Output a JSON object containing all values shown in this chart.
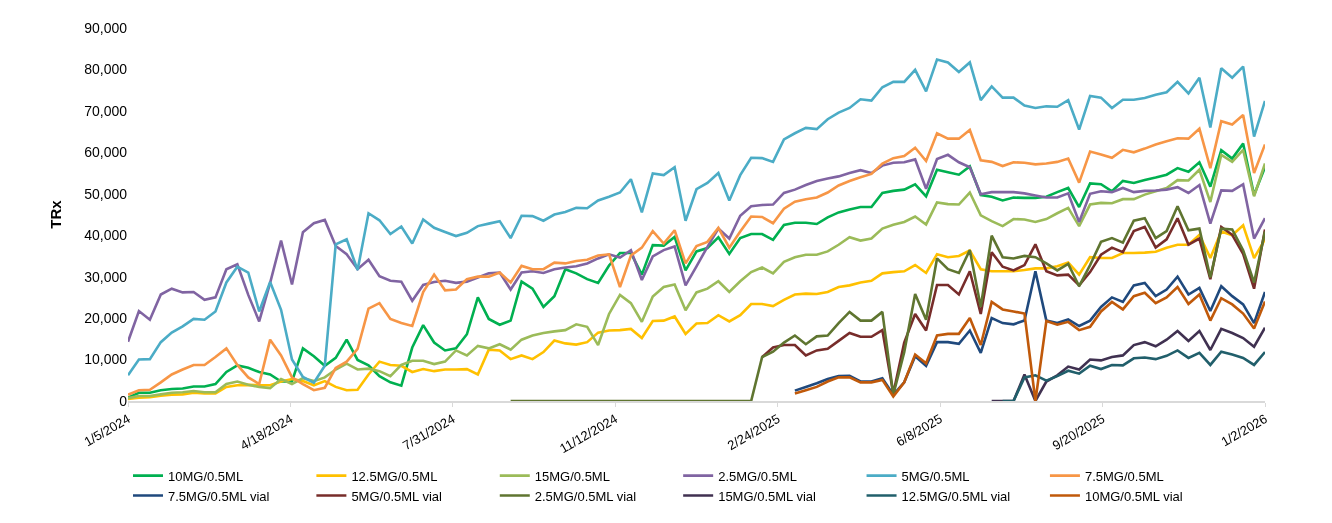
{
  "chart_data": {
    "type": "line",
    "ylabel": "TRx",
    "legend": "bottom",
    "grid": false,
    "marker": "none",
    "line_style": "solid",
    "x": [
      "2024-01-05",
      "2024-01-12",
      "2024-01-19",
      "2024-01-26",
      "2024-02-02",
      "2024-02-09",
      "2024-02-16",
      "2024-02-23",
      "2024-03-01",
      "2024-03-08",
      "2024-03-15",
      "2024-03-22",
      "2024-03-29",
      "2024-04-05",
      "2024-04-12",
      "2024-04-19",
      "2024-04-26",
      "2024-05-03",
      "2024-05-10",
      "2024-05-17",
      "2024-05-24",
      "2024-05-31",
      "2024-06-07",
      "2024-06-14",
      "2024-06-21",
      "2024-06-28",
      "2024-07-05",
      "2024-07-12",
      "2024-07-19",
      "2024-07-26",
      "2024-08-02",
      "2024-08-09",
      "2024-08-16",
      "2024-08-23",
      "2024-08-30",
      "2024-09-06",
      "2024-09-13",
      "2024-09-20",
      "2024-09-27",
      "2024-10-04",
      "2024-10-11",
      "2024-10-18",
      "2024-10-25",
      "2024-11-01",
      "2024-11-08",
      "2024-11-15",
      "2024-11-22",
      "2024-11-29",
      "2024-12-06",
      "2024-12-13",
      "2024-12-20",
      "2024-12-27",
      "2025-01-03",
      "2025-01-10",
      "2025-01-17",
      "2025-01-24",
      "2025-01-31",
      "2025-02-07",
      "2025-02-14",
      "2025-02-21",
      "2025-02-28",
      "2025-03-07",
      "2025-03-14",
      "2025-03-21",
      "2025-03-28",
      "2025-04-04",
      "2025-04-11",
      "2025-04-18",
      "2025-04-25",
      "2025-05-02",
      "2025-05-09",
      "2025-05-16",
      "2025-05-23",
      "2025-05-30",
      "2025-06-06",
      "2025-06-13",
      "2025-06-20",
      "2025-06-27",
      "2025-07-04",
      "2025-07-11",
      "2025-07-18",
      "2025-07-25",
      "2025-08-01",
      "2025-08-08",
      "2025-08-15",
      "2025-08-22",
      "2025-08-29",
      "2025-09-05",
      "2025-09-12",
      "2025-09-19",
      "2025-09-26",
      "2025-10-03",
      "2025-10-10",
      "2025-10-17",
      "2025-10-24",
      "2025-10-31",
      "2025-11-07",
      "2025-11-14",
      "2025-11-21",
      "2025-11-28",
      "2025-12-05",
      "2025-12-12",
      "2025-12-19",
      "2025-12-26",
      "2026-01-02"
    ],
    "xlim": [
      "2024-01-05",
      "2026-01-02"
    ],
    "xticks": [
      {
        "value": "2024-01-05",
        "label": "1/5/2024"
      },
      {
        "value": "2024-04-18",
        "label": "4/18/2024"
      },
      {
        "value": "2024-07-31",
        "label": "7/31/2024"
      },
      {
        "value": "2024-11-12",
        "label": "11/12/2024"
      },
      {
        "value": "2025-02-24",
        "label": "2/24/2025"
      },
      {
        "value": "2025-06-08",
        "label": "6/8/2025"
      },
      {
        "value": "2025-09-20",
        "label": "9/20/2025"
      },
      {
        "value": "2026-01-02",
        "label": "1/2/2026"
      }
    ],
    "ylim": [
      0,
      90000
    ],
    "yticks": [
      0,
      {
        "value": 10000,
        "label": "10,000"
      },
      {
        "value": 20000,
        "label": "20,000"
      },
      {
        "value": 30000,
        "label": "30,000"
      },
      {
        "value": 40000,
        "label": "40,000"
      },
      {
        "value": 50000,
        "label": "50,000"
      },
      {
        "value": 60000,
        "label": "60,000"
      },
      {
        "value": 70000,
        "label": "70,000"
      },
      {
        "value": 80000,
        "label": "80,000"
      },
      {
        "value": 90000,
        "label": "90,000"
      }
    ],
    "series": [
      {
        "name": "10MG/0.5ML",
        "color": "#00b050",
        "values": [
          800,
          2000,
          2000,
          2600,
          2900,
          3000,
          3500,
          3500,
          4100,
          7000,
          8600,
          8000,
          7000,
          6400,
          4700,
          4700,
          12700,
          10800,
          8500,
          10400,
          14800,
          9900,
          8600,
          6000,
          4500,
          3700,
          12900,
          18300,
          14100,
          12200,
          12700,
          16100,
          25000,
          19800,
          18400,
          19400,
          28800,
          27100,
          22700,
          25300,
          31800,
          30800,
          29400,
          28500,
          32700,
          35700,
          35700,
          30500,
          37600,
          37500,
          39600,
          31500,
          36100,
          36900,
          39500,
          35500,
          39300,
          40300,
          40300,
          38900,
          42500,
          43000,
          43000,
          42700,
          44300,
          45500,
          46200,
          46800,
          46800,
          50200,
          50700,
          51000,
          52300,
          49400,
          55800,
          55200,
          54600,
          56600,
          49700,
          49300,
          48400,
          49100,
          49000,
          49000,
          49300,
          50400,
          51400,
          46800,
          52500,
          52300,
          50600,
          53100,
          52600,
          53300,
          53900,
          54600,
          56200,
          55300,
          57600,
          51700,
          60500,
          58500,
          62100,
          49700,
          56400
        ]
      },
      {
        "name": "12.5MG/0.5ML",
        "color": "#ffc000",
        "values": [
          500,
          800,
          900,
          1300,
          1500,
          1600,
          2000,
          1800,
          1800,
          3400,
          3800,
          3900,
          3800,
          3800,
          4700,
          5300,
          4800,
          3800,
          4800,
          3400,
          2600,
          2700,
          6400,
          9500,
          8700,
          8500,
          7000,
          7700,
          7200,
          7600,
          7600,
          7700,
          6400,
          12400,
          12200,
          10100,
          11000,
          10100,
          11800,
          14600,
          13900,
          13600,
          14200,
          16500,
          17000,
          17100,
          17400,
          15200,
          19300,
          19400,
          20400,
          16200,
          18700,
          18800,
          20700,
          19200,
          20700,
          23400,
          23400,
          22900,
          24400,
          25700,
          25900,
          25800,
          26300,
          27500,
          27900,
          28600,
          29000,
          30800,
          31100,
          31300,
          32800,
          30900,
          35400,
          34700,
          35000,
          36300,
          31800,
          31300,
          31300,
          31300,
          31600,
          32000,
          32000,
          32500,
          33400,
          30500,
          34700,
          34500,
          34500,
          35700,
          35700,
          35800,
          36000,
          37000,
          37700,
          37700,
          40100,
          34500,
          40900,
          40000,
          42400,
          34500,
          39000
        ]
      },
      {
        "name": "15MG/0.5ML",
        "color": "#9bbb59",
        "values": [
          700,
          1200,
          1200,
          1600,
          2000,
          2100,
          2400,
          2100,
          2100,
          4100,
          4700,
          3900,
          3400,
          3100,
          5300,
          4100,
          5500,
          4800,
          5700,
          7600,
          9000,
          7600,
          7800,
          7200,
          6000,
          8700,
          9700,
          9700,
          8900,
          9500,
          12200,
          11000,
          13300,
          12700,
          13700,
          12400,
          14800,
          15800,
          16400,
          16800,
          17100,
          18500,
          17900,
          13500,
          21000,
          25600,
          23600,
          19100,
          25200,
          27500,
          28100,
          21900,
          26200,
          27100,
          28900,
          26300,
          28900,
          31100,
          32200,
          30800,
          33600,
          34700,
          35300,
          35300,
          36100,
          37700,
          39500,
          38700,
          39200,
          41600,
          42500,
          43200,
          44500,
          42600,
          47900,
          47500,
          47400,
          50300,
          44800,
          43400,
          42200,
          43900,
          43800,
          43200,
          43900,
          45300,
          46600,
          42200,
          47400,
          47800,
          47700,
          48700,
          48700,
          49800,
          50600,
          51400,
          53300,
          53200,
          55800,
          48000,
          59400,
          57700,
          60600,
          49400,
          57300
        ]
      },
      {
        "name": "2.5MG/0.5ML",
        "color": "#8064a2",
        "values": [
          14300,
          21700,
          19600,
          25700,
          27100,
          26200,
          26300,
          24400,
          25000,
          31800,
          33000,
          25600,
          19200,
          28500,
          38700,
          28100,
          40700,
          42900,
          43700,
          37400,
          35400,
          31800,
          34100,
          30100,
          29000,
          28800,
          24200,
          28000,
          28700,
          29000,
          28500,
          28800,
          29800,
          30800,
          31000,
          26900,
          31000,
          31300,
          30900,
          31800,
          32200,
          32500,
          33200,
          34400,
          35400,
          34600,
          36400,
          29200,
          34900,
          36400,
          37300,
          27900,
          32500,
          37200,
          41600,
          39200,
          44700,
          47000,
          47300,
          47400,
          50200,
          51000,
          52100,
          53100,
          53700,
          54200,
          55000,
          55700,
          55000,
          56800,
          57500,
          57600,
          58300,
          51200,
          58400,
          59400,
          57600,
          56400,
          49900,
          50400,
          50400,
          50400,
          50100,
          49600,
          49100,
          49100,
          50100,
          43200,
          50000,
          50600,
          50400,
          51400,
          50400,
          50700,
          50800,
          51000,
          51600,
          50200,
          52100,
          42800,
          50800,
          50700,
          52300,
          39200,
          44100
        ]
      },
      {
        "name": "5MG/0.5ML",
        "color": "#4bacc6",
        "values": [
          6200,
          10000,
          10100,
          14200,
          16500,
          18000,
          19800,
          19600,
          21600,
          28600,
          32400,
          31000,
          21600,
          28700,
          22000,
          10000,
          5800,
          4400,
          8500,
          37800,
          39000,
          31600,
          45300,
          43600,
          40300,
          42100,
          38000,
          43800,
          41800,
          40800,
          39800,
          40600,
          42200,
          42800,
          43400,
          39300,
          44700,
          44600,
          43500,
          45000,
          45600,
          46600,
          46500,
          48400,
          49300,
          50300,
          53500,
          45500,
          54900,
          54500,
          56400,
          43500,
          51100,
          52600,
          55000,
          48400,
          54500,
          58700,
          58600,
          57700,
          63100,
          64600,
          65900,
          65600,
          68000,
          69600,
          70700,
          72800,
          72500,
          75700,
          77000,
          77000,
          79900,
          74700,
          82400,
          81700,
          79400,
          81700,
          72600,
          75900,
          73200,
          73200,
          71300,
          70700,
          71100,
          71000,
          72600,
          65500,
          73600,
          73200,
          70700,
          72700,
          72700,
          73100,
          73900,
          74500,
          77000,
          74200,
          78000,
          66000,
          80300,
          78000,
          80700,
          63800,
          72400
        ]
      },
      {
        "name": "7.5MG/0.5ML",
        "color": "#f79646",
        "values": [
          1500,
          2600,
          2700,
          4500,
          6400,
          7600,
          8700,
          8700,
          10600,
          12700,
          8700,
          5700,
          4100,
          14800,
          11000,
          5700,
          4100,
          2600,
          3200,
          8000,
          9500,
          12600,
          22300,
          23600,
          19800,
          18800,
          18100,
          26300,
          30500,
          26700,
          26900,
          29400,
          30000,
          30000,
          31000,
          28600,
          32600,
          31800,
          31800,
          33400,
          33200,
          33800,
          34100,
          35100,
          35400,
          27500,
          35100,
          37000,
          41000,
          38000,
          41200,
          33200,
          37400,
          38400,
          41800,
          37000,
          40900,
          44500,
          44400,
          42900,
          46400,
          48100,
          48700,
          49100,
          50300,
          52000,
          53100,
          54000,
          54800,
          57300,
          58600,
          59100,
          61100,
          57900,
          64600,
          63300,
          63300,
          65400,
          58100,
          57700,
          56700,
          57600,
          57500,
          57100,
          57300,
          57700,
          58500,
          52700,
          60200,
          59500,
          58700,
          60600,
          60000,
          60900,
          61900,
          62700,
          63400,
          63300,
          65700,
          56200,
          67500,
          66700,
          69000,
          55000,
          61900
        ]
      },
      {
        "name": "7.5MG/0.5ML vial",
        "color": "#1f497d",
        "values": [
          null,
          null,
          null,
          null,
          null,
          null,
          null,
          null,
          null,
          null,
          null,
          null,
          null,
          null,
          null,
          null,
          null,
          null,
          null,
          null,
          null,
          null,
          null,
          null,
          null,
          null,
          null,
          null,
          null,
          null,
          null,
          null,
          null,
          null,
          null,
          null,
          null,
          null,
          null,
          null,
          null,
          null,
          null,
          null,
          null,
          null,
          null,
          null,
          null,
          null,
          null,
          null,
          null,
          null,
          null,
          null,
          null,
          null,
          null,
          null,
          null,
          2500,
          3400,
          4300,
          5300,
          6000,
          6100,
          4700,
          4700,
          5500,
          1500,
          4500,
          10800,
          8500,
          14200,
          14200,
          13800,
          17000,
          11600,
          20000,
          18800,
          18500,
          19400,
          31300,
          19400,
          18800,
          19700,
          18100,
          19400,
          22700,
          25000,
          23900,
          27900,
          28500,
          25300,
          26900,
          30000,
          25700,
          27300,
          21700,
          27700,
          25300,
          23300,
          18800,
          26300
        ]
      },
      {
        "name": "5MG/0.5ML vial",
        "color": "#772c2a",
        "values": [
          null,
          null,
          null,
          null,
          null,
          null,
          null,
          null,
          null,
          null,
          null,
          null,
          null,
          null,
          null,
          null,
          null,
          null,
          null,
          null,
          null,
          null,
          null,
          null,
          null,
          null,
          null,
          null,
          null,
          null,
          null,
          null,
          null,
          null,
          null,
          null,
          null,
          null,
          null,
          null,
          null,
          null,
          null,
          null,
          null,
          null,
          null,
          null,
          null,
          null,
          null,
          null,
          null,
          null,
          null,
          null,
          null,
          null,
          10600,
          12900,
          13500,
          13500,
          11000,
          12200,
          12600,
          14500,
          16400,
          15500,
          15500,
          17100,
          1800,
          14100,
          21000,
          17000,
          28000,
          28000,
          25700,
          31300,
          21000,
          35900,
          32400,
          31500,
          32800,
          37800,
          31300,
          30300,
          30500,
          27900,
          31100,
          35300,
          37000,
          35900,
          41000,
          42000,
          37000,
          39000,
          44100,
          37700,
          39200,
          29400,
          42000,
          40100,
          35500,
          27100,
          41400
        ]
      },
      {
        "name": "2.5MG/0.5ML vial",
        "color": "#5f7530",
        "values": [
          null,
          null,
          null,
          null,
          null,
          null,
          null,
          null,
          null,
          null,
          null,
          null,
          null,
          null,
          null,
          null,
          null,
          null,
          null,
          null,
          null,
          null,
          null,
          null,
          null,
          null,
          null,
          null,
          null,
          null,
          null,
          null,
          null,
          null,
          null,
          0,
          0,
          0,
          0,
          0,
          0,
          0,
          0,
          0,
          0,
          0,
          0,
          0,
          0,
          0,
          0,
          0,
          0,
          0,
          0,
          0,
          0,
          0,
          10600,
          11900,
          14100,
          15800,
          13700,
          15600,
          15800,
          18800,
          21500,
          19400,
          19400,
          21500,
          1500,
          11800,
          25800,
          19600,
          34400,
          31800,
          30900,
          36400,
          22700,
          39900,
          34700,
          34400,
          35000,
          34700,
          33200,
          31500,
          33100,
          27700,
          32800,
          38400,
          39300,
          38200,
          43500,
          44100,
          39300,
          41000,
          47000,
          41200,
          41600,
          29800,
          41600,
          41400,
          36400,
          28600,
          40900
        ]
      },
      {
        "name": "15MG/0.5ML vial",
        "color": "#403151",
        "values": [
          null,
          null,
          null,
          null,
          null,
          null,
          null,
          null,
          null,
          null,
          null,
          null,
          null,
          null,
          null,
          null,
          null,
          null,
          null,
          null,
          null,
          null,
          null,
          null,
          null,
          null,
          null,
          null,
          null,
          null,
          null,
          null,
          null,
          null,
          null,
          null,
          null,
          null,
          null,
          null,
          null,
          null,
          null,
          null,
          null,
          null,
          null,
          null,
          null,
          null,
          null,
          null,
          null,
          null,
          null,
          null,
          null,
          null,
          null,
          null,
          null,
          null,
          null,
          null,
          null,
          null,
          null,
          null,
          null,
          null,
          null,
          null,
          null,
          null,
          null,
          null,
          null,
          null,
          null,
          0,
          0,
          0,
          6400,
          0,
          4700,
          6200,
          8300,
          7600,
          10000,
          9800,
          10600,
          11000,
          13500,
          14200,
          13200,
          14800,
          16900,
          14500,
          16900,
          12300,
          17400,
          16400,
          15200,
          13100,
          17700
        ]
      },
      {
        "name": "12.5MG/0.5ML vial",
        "color": "#215f6b",
        "values": [
          null,
          null,
          null,
          null,
          null,
          null,
          null,
          null,
          null,
          null,
          null,
          null,
          null,
          null,
          null,
          null,
          null,
          null,
          null,
          null,
          null,
          null,
          null,
          null,
          null,
          null,
          null,
          null,
          null,
          null,
          null,
          null,
          null,
          null,
          null,
          null,
          null,
          null,
          null,
          null,
          null,
          null,
          null,
          null,
          null,
          null,
          null,
          null,
          null,
          null,
          null,
          null,
          null,
          null,
          null,
          null,
          null,
          null,
          null,
          null,
          null,
          null,
          null,
          null,
          null,
          null,
          null,
          null,
          null,
          null,
          null,
          null,
          null,
          null,
          null,
          null,
          null,
          null,
          null,
          null,
          0,
          0,
          5700,
          6200,
          4900,
          6000,
          7300,
          6600,
          8500,
          7700,
          8700,
          8600,
          10300,
          10500,
          10100,
          10900,
          12200,
          10400,
          11600,
          8700,
          11900,
          11200,
          10400,
          8700,
          11800
        ]
      },
      {
        "name": "10MG/0.5ML vial",
        "color": "#c0590a",
        "values": [
          null,
          null,
          null,
          null,
          null,
          null,
          null,
          null,
          null,
          null,
          null,
          null,
          null,
          null,
          null,
          null,
          null,
          null,
          null,
          null,
          null,
          null,
          null,
          null,
          null,
          null,
          null,
          null,
          null,
          null,
          null,
          null,
          null,
          null,
          null,
          null,
          null,
          null,
          null,
          null,
          null,
          null,
          null,
          null,
          null,
          null,
          null,
          null,
          null,
          null,
          null,
          null,
          null,
          null,
          null,
          null,
          null,
          null,
          null,
          null,
          null,
          1800,
          2600,
          3400,
          4700,
          5700,
          5700,
          4500,
          4500,
          5100,
          1100,
          4500,
          11200,
          9100,
          15800,
          16200,
          16200,
          20000,
          13500,
          23900,
          22100,
          21600,
          21100,
          0,
          19300,
          18400,
          19100,
          17100,
          17900,
          21600,
          23900,
          22100,
          25300,
          26100,
          23600,
          25000,
          27500,
          23400,
          25700,
          19400,
          24800,
          23300,
          21100,
          17500,
          24000
        ]
      }
    ]
  }
}
